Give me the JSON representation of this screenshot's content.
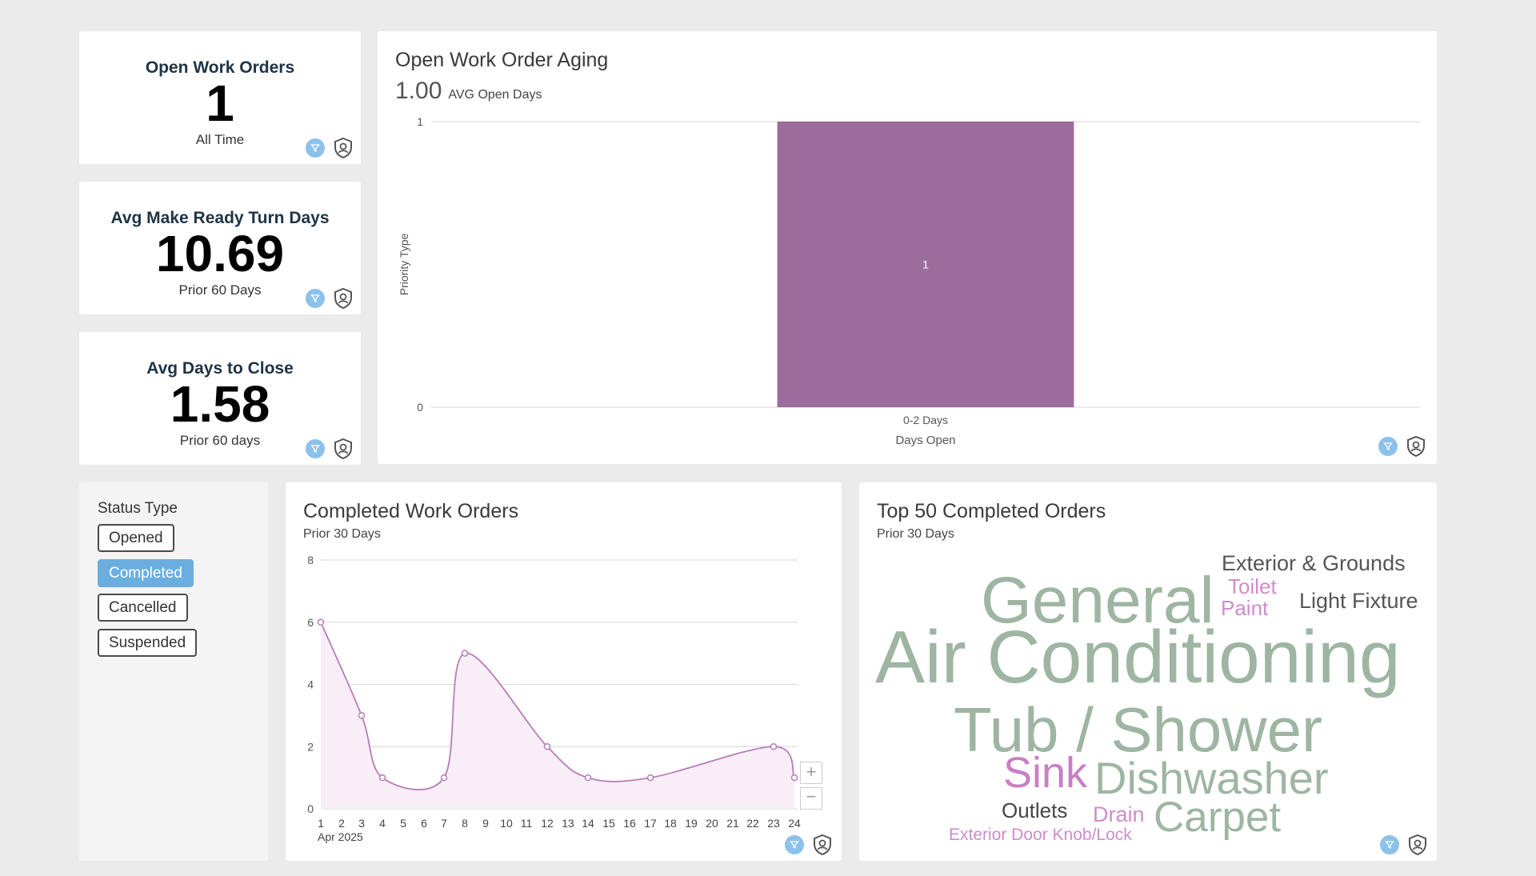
{
  "kpis": [
    {
      "title": "Open Work Orders",
      "value": "1",
      "sub": "All Time"
    },
    {
      "title": "Avg Make Ready Turn Days",
      "value": "10.69",
      "sub": "Prior 60 Days"
    },
    {
      "title": "Avg Days to Close",
      "value": "1.58",
      "sub": "Prior 60 days"
    }
  ],
  "aging": {
    "title": "Open Work Order Aging",
    "avg_value": "1.00",
    "avg_label": "AVG Open Days"
  },
  "status_filter": {
    "label": "Status Type",
    "options": [
      "Opened",
      "Completed",
      "Cancelled",
      "Suspended"
    ],
    "selected": "Completed"
  },
  "completed": {
    "title": "Completed Work Orders",
    "subtitle": "Prior 30 Days",
    "zoom_in": "+",
    "zoom_out": "−"
  },
  "top50": {
    "title": "Top 50 Completed Orders",
    "subtitle": "Prior 30 Days",
    "words": [
      {
        "text": "Exterior & Grounds",
        "color": "#555555"
      },
      {
        "text": "General",
        "color": "#9eb5a2"
      },
      {
        "text": "Toilet",
        "color": "#cf8ccb"
      },
      {
        "text": "Paint",
        "color": "#cf8ccb"
      },
      {
        "text": "Light Fixture",
        "color": "#555555"
      },
      {
        "text": "Air Conditioning",
        "color": "#9eb5a2"
      },
      {
        "text": "Tub / Shower",
        "color": "#9eb5a2"
      },
      {
        "text": "Sink",
        "color": "#c77fc3"
      },
      {
        "text": "Dishwasher",
        "color": "#9eb5a2"
      },
      {
        "text": "Outlets",
        "color": "#444444"
      },
      {
        "text": "Drain",
        "color": "#cf8ccb"
      },
      {
        "text": "Carpet",
        "color": "#9eb5a2"
      },
      {
        "text": "Exterior Door Knob/Lock",
        "color": "#cf8ccb"
      }
    ]
  },
  "colors": {
    "accent": "#6aaee0",
    "bar": "#9c6d9c",
    "line": "#b97cb9",
    "filter": "#8cc1eb"
  },
  "chart_data": [
    {
      "type": "bar",
      "xlabel": "Days Open",
      "ylabel": "Priority Type",
      "categories": [
        "0-2 Days"
      ],
      "values": [
        1
      ],
      "data_labels": [
        "1"
      ],
      "ylim": [
        0,
        1
      ],
      "yticks": [
        "0",
        "1"
      ],
      "grid": true
    },
    {
      "type": "area",
      "x": [
        "1",
        "2",
        "3",
        "4",
        "5",
        "6",
        "7",
        "8",
        "9",
        "10",
        "11",
        "12",
        "13",
        "14",
        "15",
        "16",
        "17",
        "18",
        "19",
        "20",
        "21",
        "22",
        "23",
        "24"
      ],
      "x_tick_labels": [
        "1",
        "2",
        "3",
        "4",
        "5",
        "6",
        "7",
        "8",
        "9",
        "10",
        "11",
        "12",
        "13",
        "14",
        "15",
        "16",
        "17",
        "18",
        "19",
        "20",
        "21",
        "22",
        "23",
        "24"
      ],
      "x_sub_label": "Apr 2025",
      "points": [
        {
          "x": 1,
          "y": 6
        },
        {
          "x": 3,
          "y": 3
        },
        {
          "x": 4,
          "y": 1
        },
        {
          "x": 7,
          "y": 1
        },
        {
          "x": 8,
          "y": 5
        },
        {
          "x": 12,
          "y": 2
        },
        {
          "x": 14,
          "y": 1
        },
        {
          "x": 17,
          "y": 1
        },
        {
          "x": 23,
          "y": 2
        },
        {
          "x": 24,
          "y": 1
        }
      ],
      "ylim": [
        0,
        8
      ],
      "yticks": [
        "0",
        "2",
        "4",
        "6",
        "8"
      ],
      "grid": true
    }
  ]
}
